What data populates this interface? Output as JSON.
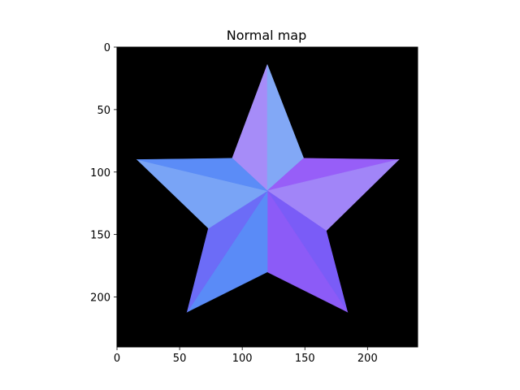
{
  "chart_data": {
    "type": "image",
    "title": "Normal map",
    "xlabel": "",
    "ylabel": "",
    "image_width": 240,
    "image_height": 240,
    "xlim": [
      0,
      240
    ],
    "ylim": [
      240,
      0
    ],
    "xticks": [
      0,
      50,
      100,
      150,
      200
    ],
    "yticks": [
      0,
      50,
      100,
      150,
      200
    ],
    "grid": false,
    "background_color": "#000000",
    "star": {
      "center": [
        120,
        115
      ],
      "outer_points": [
        [
          120,
          14
        ],
        [
          225,
          90
        ],
        [
          184,
          212
        ],
        [
          56,
          212
        ],
        [
          16,
          90
        ]
      ],
      "inner_points": [
        [
          149,
          89
        ],
        [
          167,
          147
        ],
        [
          120,
          180
        ],
        [
          73,
          145
        ],
        [
          92,
          89
        ]
      ],
      "facet_colors": [
        "#a68cf8",
        "#82a8f6",
        "#975ef8",
        "#a185f8",
        "#7a5cf7",
        "#8c5bf7",
        "#5a8bf7",
        "#6c6cf7",
        "#79a4f6",
        "#5b8cf7"
      ]
    }
  }
}
